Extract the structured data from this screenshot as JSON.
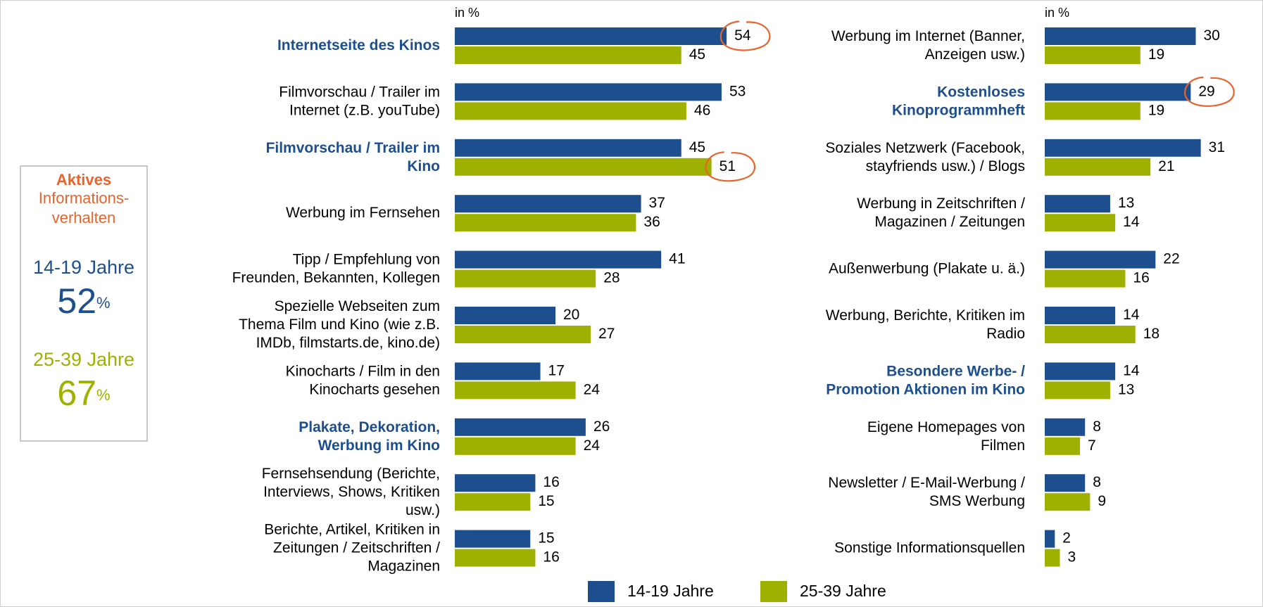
{
  "sidebar": {
    "title": "Aktives",
    "subtitle": [
      "Informations-",
      "verhalten"
    ],
    "groups": [
      {
        "name": "14-19 Jahre",
        "value": 52,
        "unit": "%",
        "color": "#1d4f8e"
      },
      {
        "name": "25-39 Jahre",
        "value": 67,
        "unit": "%",
        "color": "#9fb100"
      }
    ]
  },
  "chart_data": {
    "type": "bar",
    "orientation": "horizontal",
    "unit_label": "in %",
    "columns": 2,
    "xlim": [
      0,
      60
    ],
    "categories": [
      "Internetseite des Kinos",
      "Filmvorschau / Trailer im\nInternet (z.B. youTube)",
      "Filmvorschau / Trailer im\nKino",
      "Werbung im Fernsehen",
      "Tipp / Empfehlung von\nFreunden, Bekannten, Kollegen",
      "Spezielle Webseiten zum\nThema Film und Kino (wie z.B.\nIMDb, filmstarts.de, kino.de)",
      "Kinocharts / Film in den\nKinocharts gesehen",
      "Plakate, Dekoration,\nWerbung im Kino",
      "Fernsehsendung (Berichte,\nInterviews, Shows, Kritiken\nusw.)",
      "Berichte, Artikel, Kritiken in\nZeitungen / Zeitschriften /\nMagazinen",
      "Werbung im Internet (Banner,\nAnzeigen usw.)",
      "Kostenloses\nKinoprogrammheft",
      "Soziales Netzwerk (Facebook,\nstayfriends usw.) / Blogs",
      "Werbung in Zeitschriften /\nMagazinen / Zeitungen",
      "Außenwerbung (Plakate u. ä.)",
      "Werbung, Berichte, Kritiken im\nRadio",
      "Besondere Werbe- /\nPromotion Aktionen im Kino",
      "Eigene Homepages von\nFilmen",
      "Newsletter / E-Mail-Werbung /\nSMS Werbung",
      "Sonstige Informationsquellen"
    ],
    "highlight": [
      0,
      2,
      7,
      11,
      16
    ],
    "highlight_color": "#1d4f8e",
    "circled": [
      {
        "series": 0,
        "index": 0
      },
      {
        "series": 1,
        "index": 2
      },
      {
        "series": 0,
        "index": 11
      }
    ],
    "circle_color": "#e8642c",
    "series": [
      {
        "name": "14-19 Jahre",
        "color": "#1d4f8e",
        "values": [
          54,
          53,
          45,
          37,
          41,
          20,
          17,
          26,
          16,
          15,
          30,
          29,
          31,
          13,
          22,
          14,
          14,
          8,
          8,
          2
        ]
      },
      {
        "name": "25-39 Jahre",
        "color": "#9fb100",
        "values": [
          45,
          46,
          51,
          36,
          28,
          27,
          24,
          24,
          15,
          16,
          19,
          19,
          21,
          14,
          16,
          18,
          13,
          7,
          9,
          3
        ]
      }
    ],
    "legend": "bottom"
  }
}
